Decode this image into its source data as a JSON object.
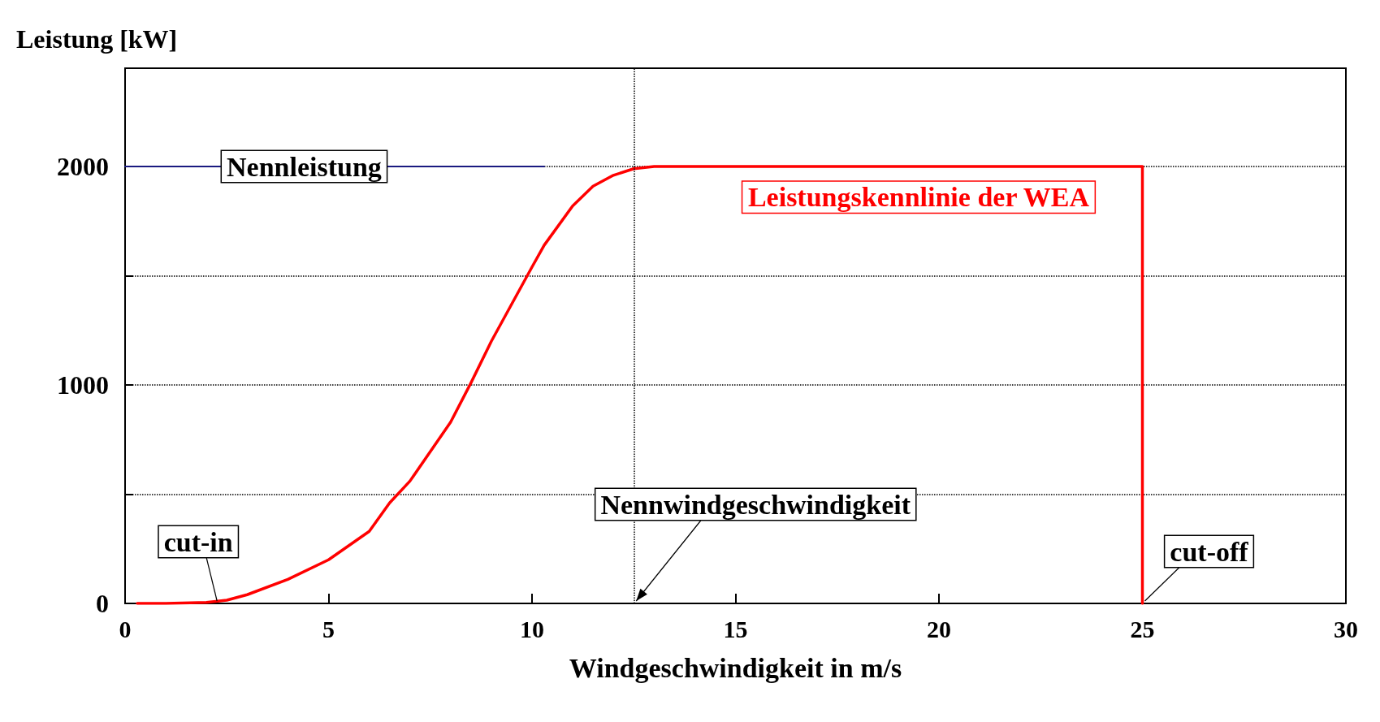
{
  "chart_data": {
    "type": "line",
    "ylabel": "Leistung [kW]",
    "xlabel": "Windgeschwindigkeit in m/s",
    "xlim": [
      0,
      30
    ],
    "xticks": [
      0,
      5,
      10,
      15,
      20,
      25,
      30
    ],
    "ylim": [
      0,
      2450
    ],
    "yticks": [
      0,
      {
        "value": 500,
        "label": null
      },
      1000,
      {
        "value": 1500,
        "label": null
      },
      2000
    ],
    "grid": "y",
    "legend": false,
    "marker": "none",
    "line_style": "solid",
    "series": [
      {
        "name": "Nennleistung",
        "color": "#1a1a80",
        "x": [
          0,
          10.3
        ],
        "values": [
          2000,
          2000
        ]
      },
      {
        "name": "Leistungskennlinie der WEA",
        "color": "#ff0000",
        "x": [
          0.3,
          1,
          2,
          2.5,
          3,
          4,
          5,
          6,
          6.5,
          7,
          8,
          8.5,
          9,
          10,
          10.3,
          11,
          11.5,
          12,
          12.5,
          13,
          20,
          25,
          25
        ],
        "values": [
          0,
          0,
          5,
          15,
          40,
          110,
          200,
          330,
          460,
          560,
          830,
          1010,
          1200,
          1540,
          1640,
          1820,
          1910,
          1960,
          1990,
          2000,
          2000,
          2000,
          0
        ]
      }
    ],
    "ref_lines": [
      {
        "axis": "x",
        "value": 12.5,
        "color": "#000000",
        "line_style": "dotted"
      }
    ],
    "annotations": [
      {
        "text": "cut-in",
        "x": 2.2,
        "y": 0
      },
      {
        "text": "Nennwindgeschwindigkeit",
        "x": 12.5,
        "y": 0
      },
      {
        "text": "cut-off",
        "x": 25,
        "y": 0
      }
    ]
  }
}
